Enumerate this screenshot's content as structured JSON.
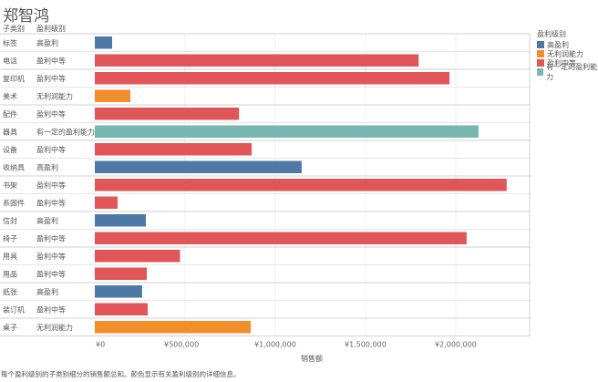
{
  "page": {
    "title": "郑智鸿",
    "caption": "每个盈利级别的子类别细分的销售额总和。颜色显示有关盈利级别的详细信息。"
  },
  "chart_data": {
    "type": "bar",
    "orientation": "horizontal",
    "title": "郑智鸿",
    "row_headers": [
      "子类别",
      "盈利级别"
    ],
    "xlabel": "销售额",
    "ylabel": "",
    "xlim": [
      0,
      2400000
    ],
    "x_ticks": [
      {
        "value": 0,
        "label": "¥0"
      },
      {
        "value": 500000,
        "label": "¥500,000"
      },
      {
        "value": 1000000,
        "label": "¥1,000,000"
      },
      {
        "value": 1500000,
        "label": "¥1,500,000"
      },
      {
        "value": 2000000,
        "label": "¥2,000,000"
      }
    ],
    "grid": true,
    "legend": {
      "title": "盈利级别",
      "position": "right",
      "entries": [
        {
          "label": "高盈利",
          "color": "#4e79a7"
        },
        {
          "label": "无利润能力",
          "color": "#f28e2b"
        },
        {
          "label": "盈利中等",
          "color": "#e15759"
        },
        {
          "label": "有一定的盈利能力",
          "color": "#76b7b2"
        }
      ]
    },
    "rows": [
      {
        "subcategory": "标签",
        "level": "高盈利",
        "value": 96000
      },
      {
        "subcategory": "电话",
        "level": "盈利中等",
        "value": 1794000
      },
      {
        "subcategory": "复印机",
        "level": "盈利中等",
        "value": 1965000
      },
      {
        "subcategory": "美术",
        "level": "无利润能力",
        "value": 197000
      },
      {
        "subcategory": "配件",
        "level": "盈利中等",
        "value": 799000
      },
      {
        "subcategory": "器具",
        "level": "有一定的盈利能力",
        "value": 2126000
      },
      {
        "subcategory": "设备",
        "level": "盈利中等",
        "value": 869000
      },
      {
        "subcategory": "收纳具",
        "level": "高盈利",
        "value": 1146000
      },
      {
        "subcategory": "书架",
        "level": "盈利中等",
        "value": 2282000
      },
      {
        "subcategory": "系固件",
        "level": "盈利中等",
        "value": 126000
      },
      {
        "subcategory": "信封",
        "level": "高盈利",
        "value": 283000
      },
      {
        "subcategory": "椅子",
        "level": "盈利中等",
        "value": 2060000
      },
      {
        "subcategory": "用具",
        "level": "盈利中等",
        "value": 472000
      },
      {
        "subcategory": "用品",
        "level": "盈利中等",
        "value": 288000
      },
      {
        "subcategory": "纸张",
        "level": "高盈利",
        "value": 262000
      },
      {
        "subcategory": "装订机",
        "level": "盈利中等",
        "value": 293000
      },
      {
        "subcategory": "桌子",
        "level": "无利润能力",
        "value": 864000
      }
    ]
  }
}
